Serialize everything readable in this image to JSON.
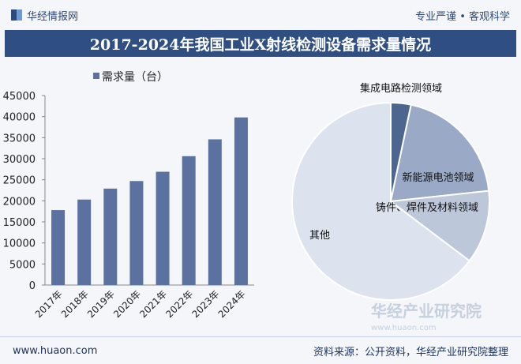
{
  "header": {
    "logo": "华经情报网",
    "slogan": "专业严谨 • 客观科学"
  },
  "title": "2017-2024年我国工业X射线检测设备需求量情况",
  "footer": {
    "url": "www.huaon.com",
    "source": "资料来源：公开资料，华经产业研究院整理"
  },
  "watermark": {
    "name": "华经产业研究院",
    "url": "www.huaon.com"
  },
  "chart_data": [
    {
      "type": "bar",
      "legend": "需求量（台）",
      "categories": [
        "2017年",
        "2018年",
        "2019年",
        "2020年",
        "2021年",
        "2022年",
        "2023年",
        "2024年"
      ],
      "values": [
        17800,
        20300,
        22900,
        24700,
        26900,
        30600,
        34600,
        39800
      ],
      "ylim": [
        0,
        45000
      ],
      "yticks": [
        "0",
        "5000",
        "10000",
        "15000",
        "20000",
        "25000",
        "30000",
        "35000",
        "40000",
        "45000"
      ],
      "color": "#5b72a0",
      "legend_position": "top"
    },
    {
      "type": "pie",
      "slices": [
        {
          "label": "集成电路检测领域",
          "value": 3.3,
          "color": "#4d6690"
        },
        {
          "label": "新能源电池领域",
          "value": 20,
          "color": "#9aaac6"
        },
        {
          "label": "铸件、焊件及材料领域",
          "value": 12,
          "color": "#bcc7da"
        },
        {
          "label": "其他",
          "value": 64.7,
          "color": "#dde3ee"
        }
      ]
    }
  ]
}
